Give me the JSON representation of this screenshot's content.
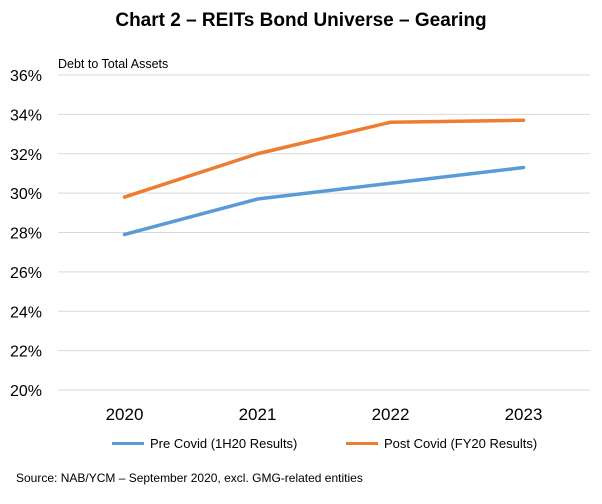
{
  "chart_data": {
    "type": "line",
    "title": "Chart 2 – REITs Bond Universe – Gearing",
    "ylabel": "Debt to Total Assets",
    "xlabel": "",
    "categories": [
      "2020",
      "2021",
      "2022",
      "2023"
    ],
    "ylim": [
      20,
      36
    ],
    "yticks": [
      "20%",
      "22%",
      "24%",
      "26%",
      "28%",
      "30%",
      "32%",
      "34%",
      "36%"
    ],
    "grid": true,
    "legend_position": "bottom",
    "series": [
      {
        "name": "Pre Covid (1H20 Results)",
        "color": "#5b9bd5",
        "values": [
          27.9,
          29.7,
          30.5,
          31.3
        ]
      },
      {
        "name": "Post Covid (FY20 Results)",
        "color": "#ed7d31",
        "values": [
          29.8,
          32.0,
          33.6,
          33.7
        ]
      }
    ]
  },
  "source": "Source: NAB/YCM – September 2020, excl. GMG-related entities"
}
